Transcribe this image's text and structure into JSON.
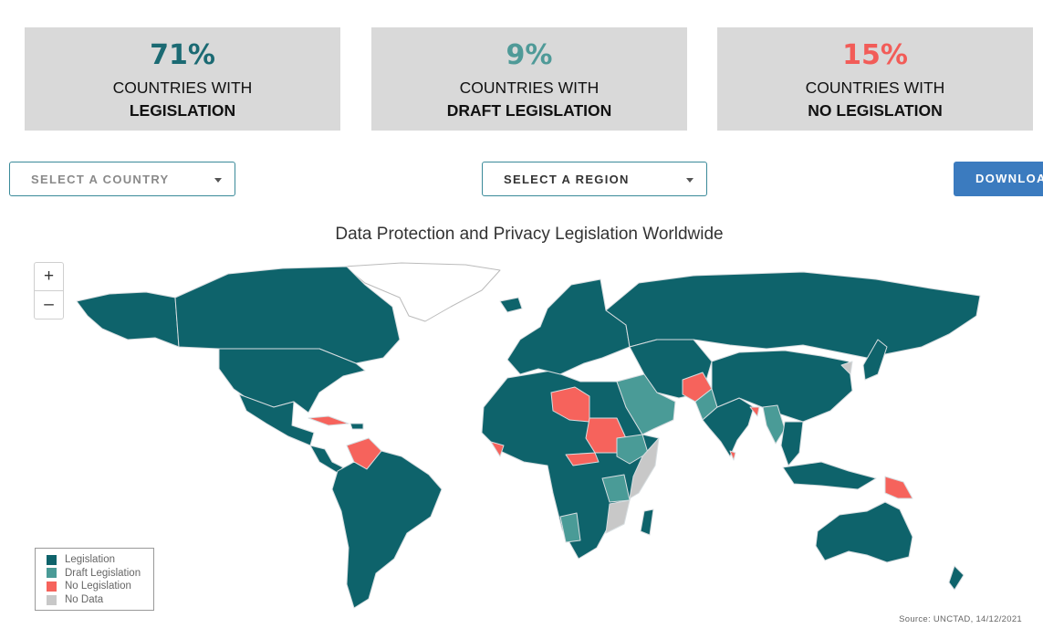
{
  "stats": [
    {
      "value": "71%",
      "line1": "COUNTRIES WITH",
      "line2": "LEGISLATION",
      "color": "#1b6a73"
    },
    {
      "value": "9%",
      "line1": "COUNTRIES WITH",
      "line2": "DRAFT LEGISLATION",
      "color": "#4f9a98"
    },
    {
      "value": "15%",
      "line1": "COUNTRIES WITH",
      "line2": "NO LEGISLATION",
      "color": "#f25c58"
    }
  ],
  "controls": {
    "country_select": "SELECT A COUNTRY",
    "region_select": "SELECT A REGION",
    "download": "DOWNLOAD"
  },
  "map": {
    "title": "Data Protection and Privacy Legislation Worldwide",
    "zoom_in": "+",
    "zoom_out": "–",
    "colors": {
      "legislation": "#0e636b",
      "draft": "#4a9b97",
      "none": "#f6635c",
      "nodata": "#c8c8c8",
      "border": "#d7dde0"
    },
    "legend": [
      {
        "label": "Legislation",
        "color": "#0e636b"
      },
      {
        "label": "Draft Legislation",
        "color": "#4a9b97"
      },
      {
        "label": "No Legislation",
        "color": "#f6635c"
      },
      {
        "label": "No Data",
        "color": "#c8c8c8"
      }
    ],
    "source": "Source: UNCTAD, 14/12/2021"
  }
}
